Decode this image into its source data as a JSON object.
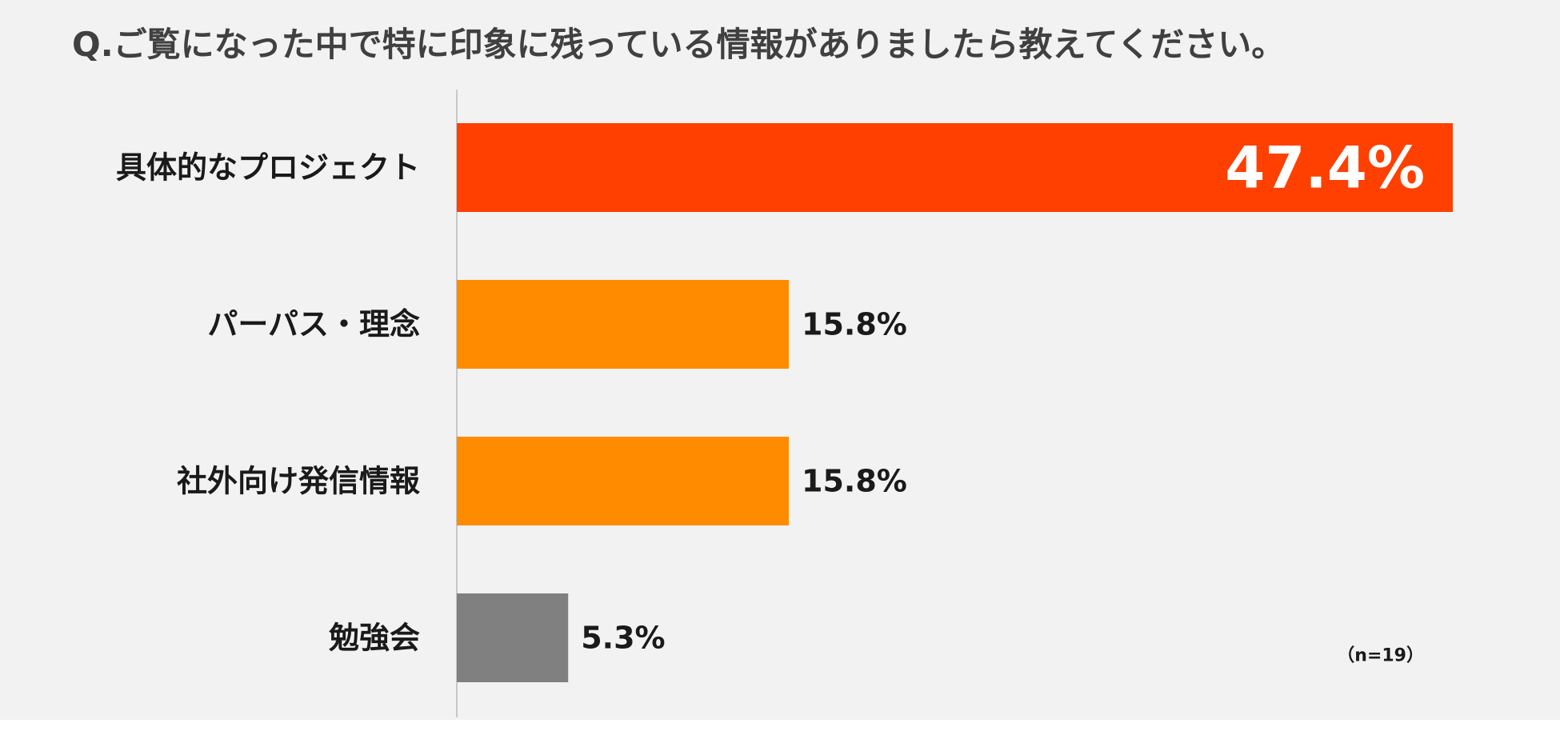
{
  "title": "Q.ご覧になった中で特に印象に残っている情報がありましたら教えてください。",
  "note": "（n=19）",
  "chart_data": {
    "type": "bar",
    "orientation": "horizontal",
    "categories": [
      "具体的なプロジェクト",
      "パーパス・理念",
      "社外向け発信情報",
      "勉強会"
    ],
    "values": [
      47.4,
      15.8,
      15.8,
      5.3
    ],
    "value_labels": [
      "47.4%",
      "15.8%",
      "15.8%",
      "5.3%"
    ],
    "unit": "%",
    "colors": [
      "#ff4000",
      "#ff8c00",
      "#ff8c00",
      "#808080"
    ],
    "xlim": [
      0,
      47.4
    ],
    "grid": false,
    "legend": "none"
  }
}
